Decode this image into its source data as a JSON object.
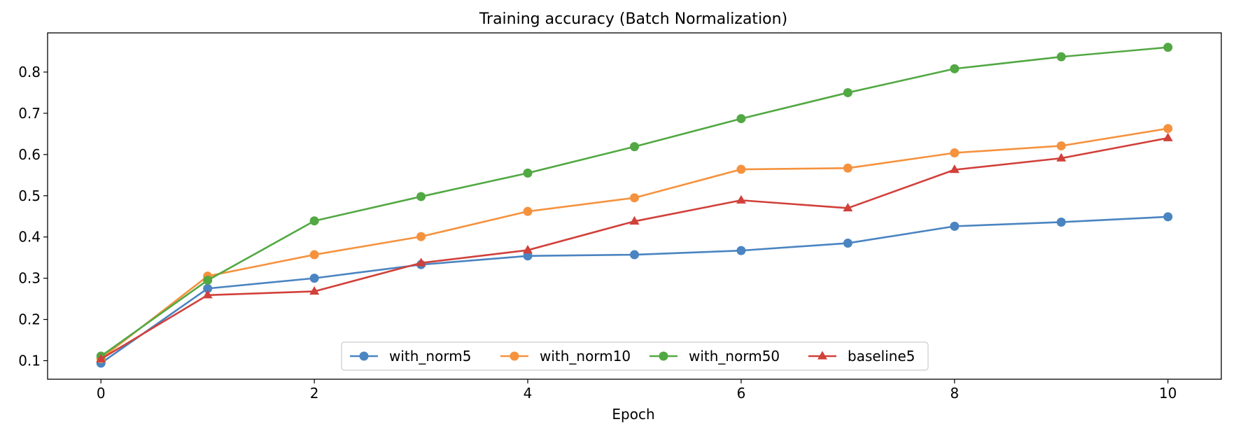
{
  "chart_data": {
    "type": "line",
    "title": "Training accuracy (Batch Normalization)",
    "xlabel": "Epoch",
    "ylabel": "",
    "xlim": [
      -0.5,
      10.5
    ],
    "ylim": [
      0.055,
      0.895
    ],
    "xticks": [
      0,
      2,
      4,
      6,
      8,
      10
    ],
    "yticks": [
      0.1,
      0.2,
      0.3,
      0.4,
      0.5,
      0.6,
      0.7,
      0.8
    ],
    "x": [
      0,
      1,
      2,
      3,
      4,
      5,
      6,
      7,
      8,
      9,
      10
    ],
    "grid": false,
    "legend": "lower center",
    "series": [
      {
        "name": "with_norm5",
        "color": "#4a84c1",
        "marker": "circle",
        "values": [
          0.094,
          0.275,
          0.3,
          0.333,
          0.354,
          0.357,
          0.367,
          0.385,
          0.426,
          0.436,
          0.449
        ]
      },
      {
        "name": "with_norm10",
        "color": "#f5923e",
        "marker": "circle",
        "values": [
          0.105,
          0.305,
          0.357,
          0.401,
          0.462,
          0.495,
          0.564,
          0.567,
          0.604,
          0.621,
          0.663
        ]
      },
      {
        "name": "with_norm50",
        "color": "#52a843",
        "marker": "circle",
        "values": [
          0.111,
          0.295,
          0.439,
          0.498,
          0.555,
          0.619,
          0.687,
          0.75,
          0.808,
          0.837,
          0.86
        ]
      },
      {
        "name": "baseline5",
        "color": "#d1403a",
        "marker": "triangle",
        "values": [
          0.104,
          0.259,
          0.268,
          0.337,
          0.368,
          0.438,
          0.489,
          0.47,
          0.563,
          0.591,
          0.64
        ]
      }
    ]
  }
}
